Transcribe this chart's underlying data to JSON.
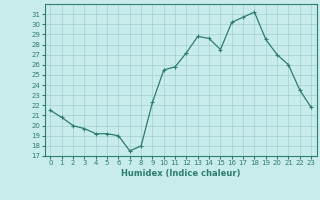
{
  "x": [
    0,
    1,
    2,
    3,
    4,
    5,
    6,
    7,
    8,
    9,
    10,
    11,
    12,
    13,
    14,
    15,
    16,
    17,
    18,
    19,
    20,
    21,
    22,
    23
  ],
  "y": [
    21.5,
    20.8,
    20.0,
    19.7,
    19.2,
    19.2,
    19.0,
    17.5,
    18.0,
    22.3,
    25.5,
    25.8,
    27.2,
    28.8,
    28.6,
    27.5,
    30.2,
    30.7,
    31.2,
    28.5,
    27.0,
    26.0,
    23.5,
    21.8
  ],
  "line_color": "#2d7d6e",
  "marker": "+",
  "markersize": 3,
  "linewidth": 0.9,
  "xlabel": "Humidex (Indice chaleur)",
  "bg_color": "#c8ecec",
  "grid_color": "#a0d0d0",
  "ylim": [
    17,
    32
  ],
  "xlim": [
    -0.5,
    23.5
  ],
  "yticks": [
    17,
    18,
    19,
    20,
    21,
    22,
    23,
    24,
    25,
    26,
    27,
    28,
    29,
    30,
    31
  ],
  "xticks": [
    0,
    1,
    2,
    3,
    4,
    5,
    6,
    7,
    8,
    9,
    10,
    11,
    12,
    13,
    14,
    15,
    16,
    17,
    18,
    19,
    20,
    21,
    22,
    23
  ],
  "tick_fontsize": 5,
  "xlabel_fontsize": 6,
  "spine_color": "#2d7d6e"
}
